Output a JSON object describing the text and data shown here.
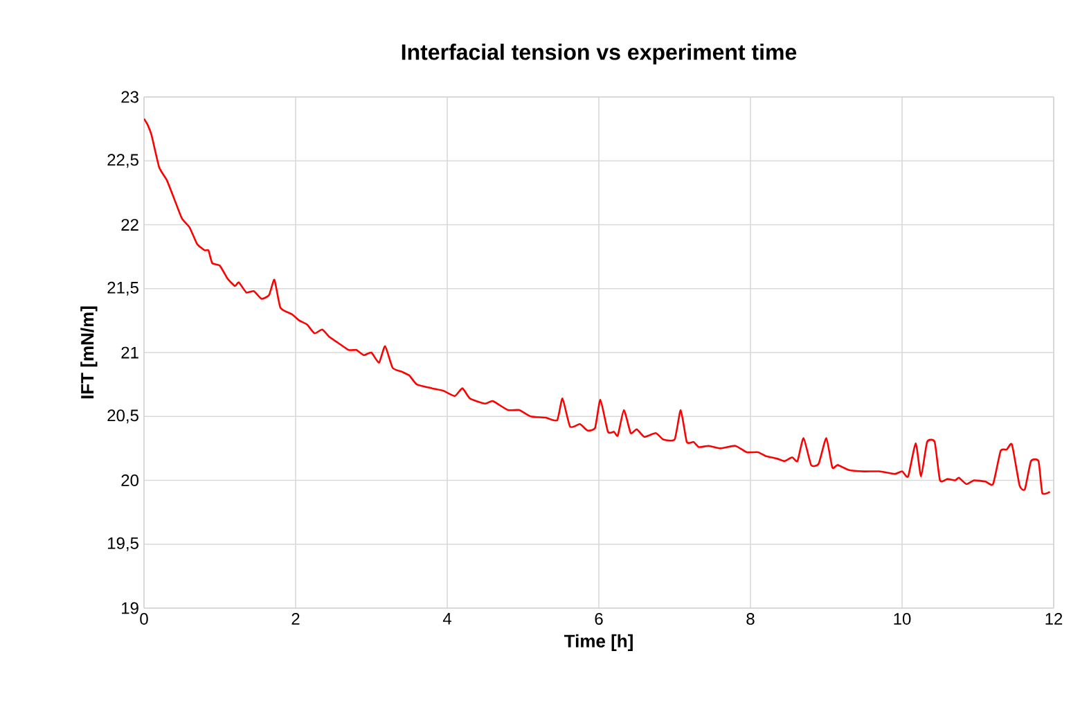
{
  "chart_data": {
    "type": "line",
    "title": "Interfacial tension vs experiment time",
    "xlabel": "Time [h]",
    "ylabel": "IFT [mN/m]",
    "xlim": [
      0,
      12
    ],
    "ylim": [
      19,
      23
    ],
    "xticks": [
      0,
      2,
      4,
      6,
      8,
      10,
      12
    ],
    "yticks": [
      19,
      {
        "value": 19.5,
        "label": "19,5"
      },
      20,
      {
        "value": 20.5,
        "label": "20,5"
      },
      21,
      {
        "value": 21.5,
        "label": "21,5"
      },
      22,
      {
        "value": 22.5,
        "label": "22,5"
      },
      23
    ],
    "grid": true,
    "marker": "none",
    "line_style": "solid",
    "series": [
      {
        "color": "#ff0000",
        "x": [
          0,
          0.05,
          0.1,
          0.2,
          0.3,
          0.4,
          0.5,
          0.6,
          0.7,
          0.8,
          0.85,
          0.9,
          1.0,
          1.1,
          1.2,
          1.25,
          1.35,
          1.45,
          1.55,
          1.65,
          1.72,
          1.8,
          1.95,
          2.05,
          2.15,
          2.25,
          2.35,
          2.45,
          2.55,
          2.7,
          2.8,
          2.9,
          3.0,
          3.1,
          3.18,
          3.28,
          3.4,
          3.5,
          3.6,
          3.8,
          3.95,
          4.1,
          4.2,
          4.3,
          4.5,
          4.6,
          4.8,
          4.95,
          5.1,
          5.3,
          5.45,
          5.52,
          5.62,
          5.75,
          5.85,
          5.95,
          6.02,
          6.12,
          6.2,
          6.25,
          6.33,
          6.42,
          6.5,
          6.6,
          6.75,
          6.85,
          7.0,
          7.08,
          7.16,
          7.25,
          7.32,
          7.45,
          7.6,
          7.8,
          7.95,
          8.1,
          8.2,
          8.35,
          8.45,
          8.55,
          8.62,
          8.7,
          8.8,
          8.9,
          9.0,
          9.08,
          9.15,
          9.3,
          9.5,
          9.7,
          9.9,
          10.0,
          10.08,
          10.18,
          10.25,
          10.33,
          10.43,
          10.5,
          10.6,
          10.7,
          10.75,
          10.85,
          10.95,
          11.1,
          11.2,
          11.3,
          11.38,
          11.45,
          11.55,
          11.62,
          11.7,
          11.8,
          11.85,
          11.95
        ],
        "values": [
          22.83,
          22.78,
          22.7,
          22.45,
          22.35,
          22.2,
          22.05,
          21.98,
          21.85,
          21.8,
          21.8,
          21.7,
          21.68,
          21.58,
          21.52,
          21.55,
          21.47,
          21.48,
          21.42,
          21.45,
          21.57,
          21.35,
          21.3,
          21.25,
          21.22,
          21.15,
          21.18,
          21.12,
          21.08,
          21.02,
          21.02,
          20.98,
          21.0,
          20.92,
          21.05,
          20.88,
          20.85,
          20.82,
          20.75,
          20.72,
          20.7,
          20.66,
          20.72,
          20.64,
          20.6,
          20.62,
          20.55,
          20.55,
          20.5,
          20.49,
          20.47,
          20.64,
          20.42,
          20.44,
          20.39,
          20.41,
          20.63,
          20.38,
          20.38,
          20.35,
          20.55,
          20.37,
          20.4,
          20.34,
          20.37,
          20.32,
          20.32,
          20.55,
          20.3,
          20.3,
          20.26,
          20.27,
          20.25,
          20.27,
          20.22,
          20.22,
          20.19,
          20.17,
          20.15,
          20.18,
          20.15,
          20.33,
          20.12,
          20.13,
          20.33,
          20.1,
          20.12,
          20.08,
          20.07,
          20.07,
          20.05,
          20.07,
          20.03,
          20.29,
          20.03,
          20.3,
          20.3,
          20.0,
          20.01,
          20.0,
          20.02,
          19.97,
          20.0,
          19.99,
          19.97,
          20.23,
          20.24,
          20.28,
          19.96,
          19.93,
          20.15,
          20.15,
          19.9,
          19.91
        ]
      }
    ]
  }
}
